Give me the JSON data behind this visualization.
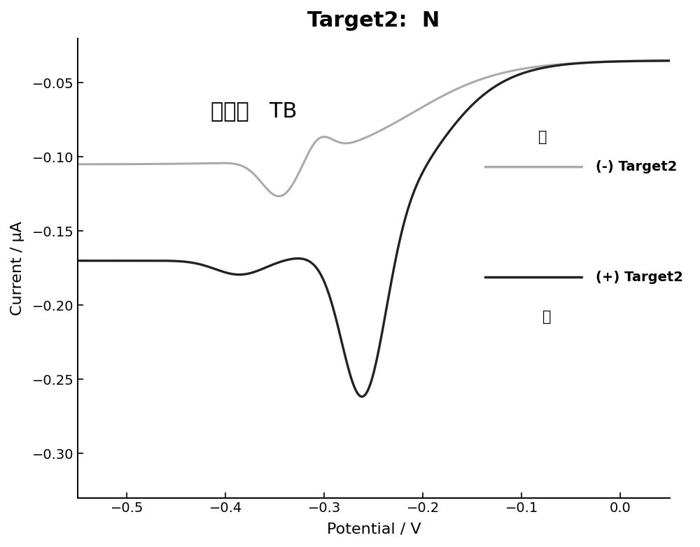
{
  "title": "Target2:  N",
  "xlabel": "Potential / V",
  "ylabel": "Current / μA",
  "annotation": "信号：   TB",
  "xlim": [
    -0.55,
    0.05
  ],
  "ylim": [
    -0.33,
    -0.02
  ],
  "xticks": [
    -0.5,
    -0.4,
    -0.3,
    -0.2,
    -0.1,
    0.0
  ],
  "yticks": [
    -0.3,
    -0.25,
    -0.2,
    -0.15,
    -0.1,
    -0.05
  ],
  "legend_upper_label_line1": "上",
  "legend_upper_label_line2": "(-) Target2",
  "legend_lower_label_line1": "(+) Target2",
  "legend_lower_label_line2": "下",
  "line_gray_color": "#aaaaaa",
  "line_black_color": "#222222",
  "background_color": "#ffffff",
  "title_fontsize": 22,
  "label_fontsize": 16,
  "tick_fontsize": 14,
  "annotation_fontsize": 22,
  "legend_fontsize": 14
}
